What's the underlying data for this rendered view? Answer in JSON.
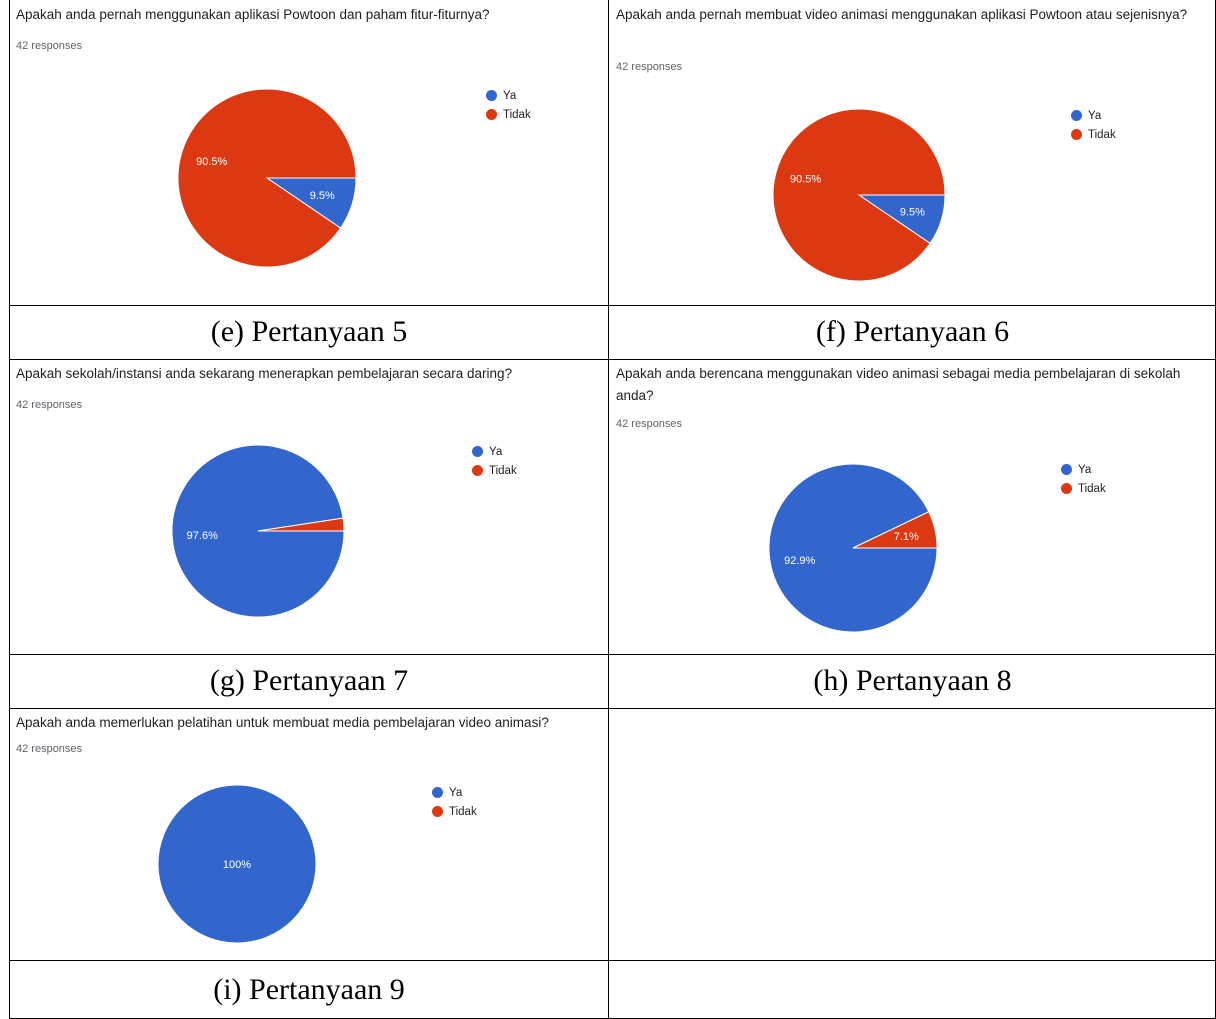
{
  "colors": {
    "ya": "#3366cc",
    "tidak": "#dc3912",
    "border": "#000000"
  },
  "legend": {
    "ya": "Ya",
    "tidak": "Tidak"
  },
  "chart_data": [
    {
      "type": "pie",
      "title": "Apakah anda pernah menggunakan aplikasi Powtoon dan paham fitur-fiturnya?",
      "subtitle": "42 responses",
      "caption": "(e) Pertanyaan 5",
      "categories": [
        "Ya",
        "Tidak"
      ],
      "values": [
        9.5,
        90.5
      ],
      "labels": [
        "9.5%",
        "90.5%"
      ]
    },
    {
      "type": "pie",
      "title": "Apakah anda pernah membuat video animasi menggunakan aplikasi Powtoon atau sejenisnya?",
      "subtitle": "42 responses",
      "caption": "(f) Pertanyaan 6",
      "categories": [
        "Ya",
        "Tidak"
      ],
      "values": [
        9.5,
        90.5
      ],
      "labels": [
        "9.5%",
        "90.5%"
      ]
    },
    {
      "type": "pie",
      "title": "Apakah sekolah/instansi anda sekarang menerapkan pembelajaran secara daring?",
      "subtitle": "42 responses",
      "caption": "(g) Pertanyaan 7",
      "categories": [
        "Ya",
        "Tidak"
      ],
      "values": [
        97.6,
        2.4
      ],
      "labels": [
        "97.6%",
        ""
      ]
    },
    {
      "type": "pie",
      "title": "Apakah anda berencana menggunakan video animasi sebagai media pembelajaran di sekolah anda?",
      "subtitle": "42 responses",
      "caption": "(h) Pertanyaan 8",
      "categories": [
        "Ya",
        "Tidak"
      ],
      "values": [
        92.9,
        7.1
      ],
      "labels": [
        "92.9%",
        "7.1%"
      ]
    },
    {
      "type": "pie",
      "title": "Apakah anda memerlukan pelatihan untuk membuat media pembelajaran video animasi?",
      "subtitle": "42 responses",
      "caption": "(i) Pertanyaan 9",
      "categories": [
        "Ya",
        "Tidak"
      ],
      "values": [
        100,
        0
      ],
      "labels": [
        "100%",
        ""
      ]
    }
  ]
}
